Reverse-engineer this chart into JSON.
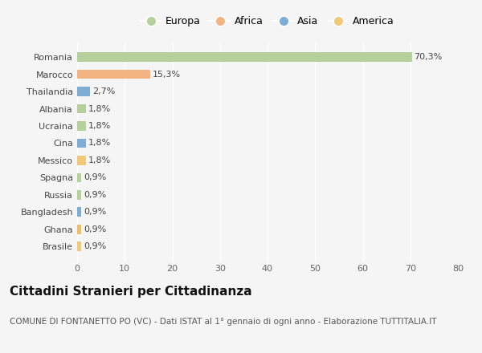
{
  "countries": [
    "Brasile",
    "Ghana",
    "Bangladesh",
    "Russia",
    "Spagna",
    "Messico",
    "Cina",
    "Ucraina",
    "Albania",
    "Thailandia",
    "Marocco",
    "Romania"
  ],
  "values": [
    0.9,
    0.9,
    0.9,
    0.9,
    0.9,
    1.8,
    1.8,
    1.8,
    1.8,
    2.7,
    15.3,
    70.3
  ],
  "labels": [
    "0,9%",
    "0,9%",
    "0,9%",
    "0,9%",
    "0,9%",
    "1,8%",
    "1,8%",
    "1,8%",
    "1,8%",
    "2,7%",
    "15,3%",
    "70,3%"
  ],
  "colors": [
    "#f0c97a",
    "#f0bf6a",
    "#7eaed4",
    "#b5d09a",
    "#b5d09a",
    "#f0c97a",
    "#7eaed4",
    "#b5d09a",
    "#b5d09a",
    "#7eaed4",
    "#f4b482",
    "#b5d09a"
  ],
  "legend_labels": [
    "Europa",
    "Africa",
    "Asia",
    "America"
  ],
  "legend_colors": [
    "#b5d09a",
    "#f4b482",
    "#7eaed4",
    "#f0c97a"
  ],
  "title": "Cittadini Stranieri per Cittadinanza",
  "subtitle": "COMUNE DI FONTANETTO PO (VC) - Dati ISTAT al 1° gennaio di ogni anno - Elaborazione TUTTITALIA.IT",
  "xlim": [
    0,
    80
  ],
  "xticks": [
    0,
    10,
    20,
    30,
    40,
    50,
    60,
    70,
    80
  ],
  "bg_color": "#f5f5f5",
  "bar_height": 0.55,
  "title_fontsize": 11,
  "subtitle_fontsize": 7.5,
  "tick_fontsize": 8,
  "label_fontsize": 8,
  "legend_fontsize": 9
}
